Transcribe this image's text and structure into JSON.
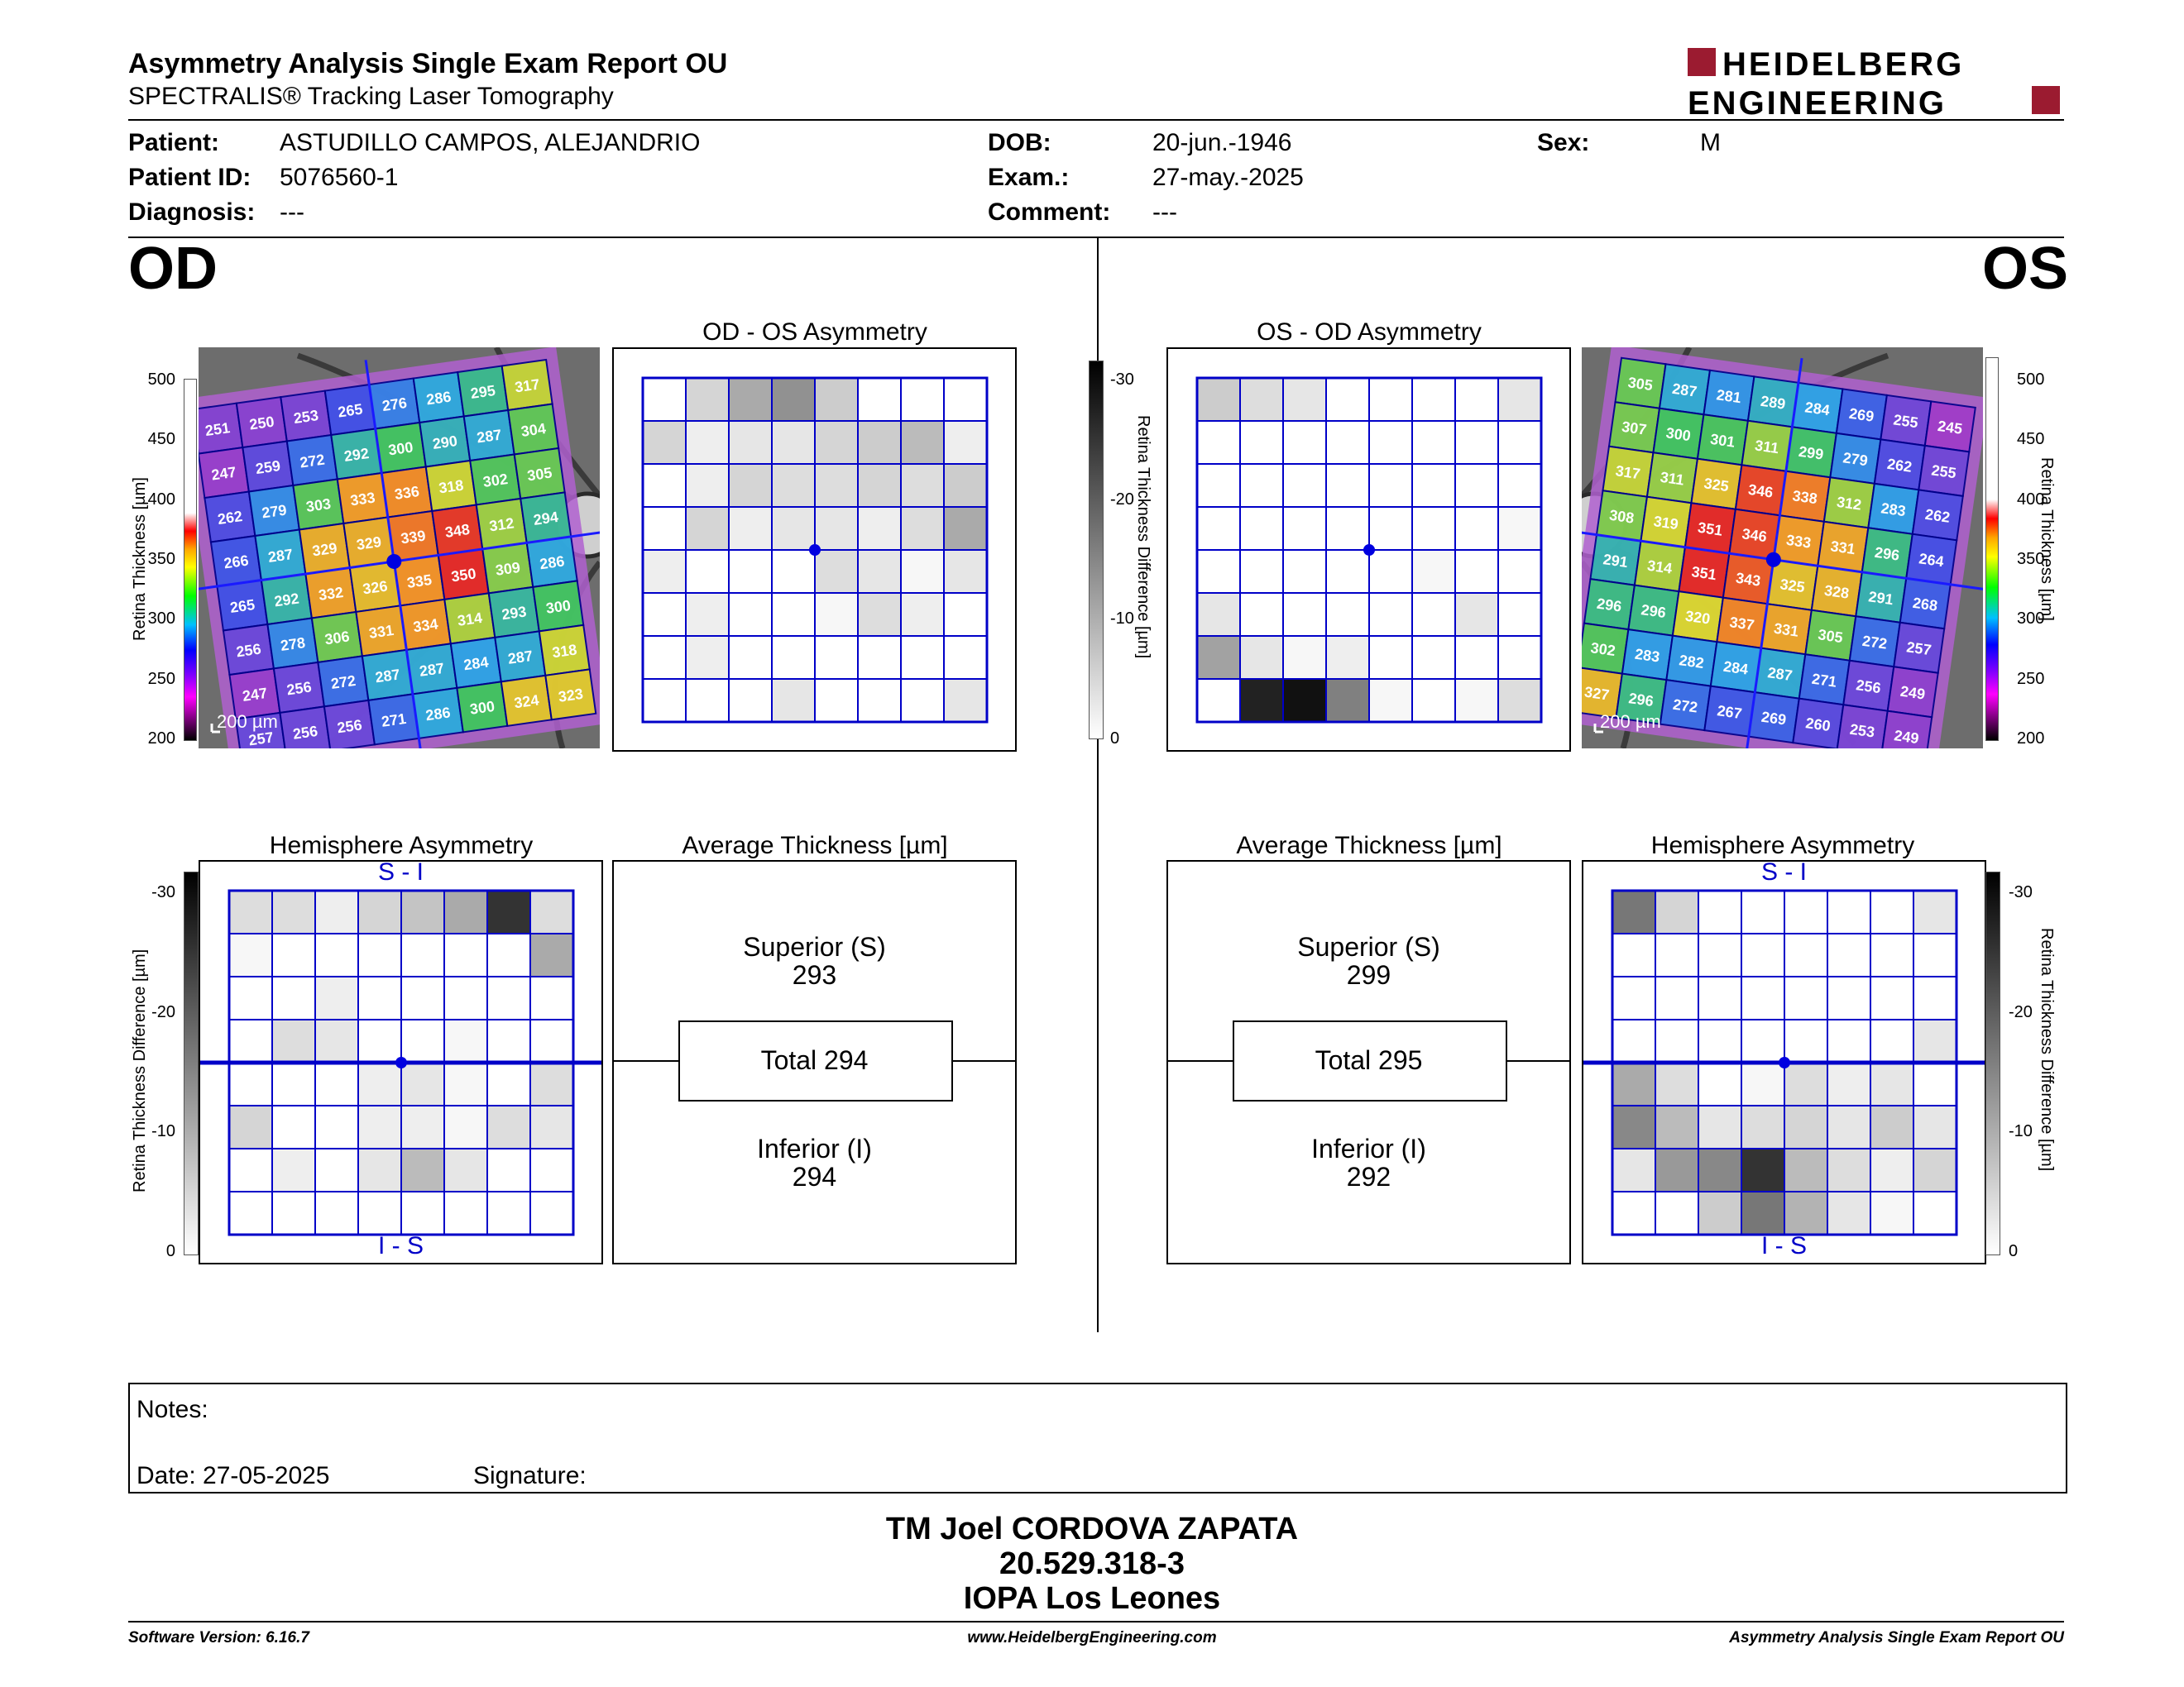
{
  "header": {
    "title": "Asymmetry Analysis Single Exam Report OU",
    "subtitle": "SPECTRALIS® Tracking Laser Tomography",
    "logo_line1": "HEIDELBERG",
    "logo_line2": "ENGINEERING"
  },
  "patient": {
    "patient_label": "Patient:",
    "patient_value": "ASTUDILLO CAMPOS, ALEJANDRIO",
    "id_label": "Patient ID:",
    "id_value": "5076560-1",
    "diag_label": "Diagnosis:",
    "diag_value": "---",
    "dob_label": "DOB:",
    "dob_value": "20-jun.-1946",
    "exam_label": "Exam.:",
    "exam_value": "27-may.-2025",
    "comment_label": "Comment:",
    "comment_value": "---",
    "sex_label": "Sex:",
    "sex_value": "M"
  },
  "od": {
    "eye_label": "OD",
    "asym_title": "OD - OS Asymmetry",
    "hemi_title": "Hemisphere Asymmetry",
    "avg_title": "Average Thickness [µm]",
    "scale_label": "200 µm",
    "hemi_top": "S - I",
    "hemi_bottom": "I - S",
    "superior_label": "Superior (S)",
    "superior_value": "293",
    "total_text": "Total 294",
    "inferior_label": "Inferior (I)",
    "inferior_value": "294",
    "thickness": [
      [
        251,
        250,
        253,
        265,
        276,
        286,
        295,
        317
      ],
      [
        247,
        259,
        272,
        292,
        300,
        290,
        287,
        304
      ],
      [
        262,
        279,
        303,
        333,
        336,
        318,
        302,
        305
      ],
      [
        266,
        287,
        329,
        329,
        339,
        348,
        312,
        294
      ],
      [
        265,
        292,
        332,
        326,
        335,
        350,
        309,
        286
      ],
      [
        256,
        278,
        306,
        331,
        334,
        314,
        293,
        300
      ],
      [
        247,
        256,
        272,
        287,
        287,
        284,
        287,
        318
      ],
      [
        257,
        256,
        256,
        271,
        286,
        300,
        324,
        323
      ]
    ],
    "asym_gray": [
      [
        0,
        5,
        10,
        13,
        6,
        0,
        0,
        0
      ],
      [
        5,
        2,
        3,
        3,
        5,
        6,
        8,
        2
      ],
      [
        0,
        2,
        5,
        4,
        4,
        5,
        4,
        6
      ],
      [
        0,
        5,
        2,
        3,
        3,
        2,
        4,
        10
      ],
      [
        2,
        0,
        0,
        0,
        4,
        3,
        1,
        3
      ],
      [
        0,
        2,
        0,
        0,
        1,
        4,
        2,
        0
      ],
      [
        0,
        2,
        0,
        0,
        0,
        0,
        0,
        0
      ],
      [
        0,
        0,
        0,
        3,
        0,
        0,
        0,
        3
      ]
    ],
    "hemi_gray": [
      [
        4,
        4,
        2,
        5,
        7,
        10,
        24,
        4
      ],
      [
        1,
        0,
        0,
        0,
        0,
        0,
        0,
        10
      ],
      [
        0,
        0,
        2,
        0,
        0,
        0,
        0,
        0
      ],
      [
        0,
        4,
        3,
        0,
        0,
        1,
        0,
        0
      ],
      [
        0,
        0,
        0,
        2,
        3,
        1,
        0,
        4
      ],
      [
        5,
        0,
        0,
        2,
        2,
        1,
        4,
        3
      ],
      [
        0,
        2,
        0,
        3,
        8,
        3,
        0,
        0
      ],
      [
        0,
        0,
        0,
        0,
        0,
        0,
        0,
        0
      ]
    ]
  },
  "os": {
    "eye_label": "OS",
    "asym_title": "OS - OD Asymmetry",
    "hemi_title": "Hemisphere Asymmetry",
    "avg_title": "Average Thickness [µm]",
    "scale_label": "200 µm",
    "hemi_top": "S - I",
    "hemi_bottom": "I - S",
    "superior_label": "Superior (S)",
    "superior_value": "299",
    "total_text": "Total 295",
    "inferior_label": "Inferior (I)",
    "inferior_value": "292",
    "thickness": [
      [
        305,
        287,
        281,
        289,
        284,
        269,
        255,
        245
      ],
      [
        307,
        300,
        301,
        311,
        299,
        279,
        262,
        255
      ],
      [
        317,
        311,
        325,
        346,
        338,
        312,
        283,
        262
      ],
      [
        308,
        319,
        351,
        346,
        333,
        331,
        296,
        264
      ],
      [
        291,
        314,
        351,
        343,
        325,
        328,
        291,
        268
      ],
      [
        296,
        296,
        320,
        337,
        331,
        305,
        272,
        257
      ],
      [
        302,
        283,
        282,
        284,
        287,
        271,
        256,
        249
      ],
      [
        327,
        296,
        272,
        267,
        269,
        260,
        253,
        249
      ]
    ],
    "asym_gray": [
      [
        6,
        4,
        3,
        0,
        0,
        0,
        0,
        3
      ],
      [
        0,
        0,
        0,
        0,
        0,
        0,
        0,
        0
      ],
      [
        0,
        0,
        0,
        0,
        0,
        0,
        0,
        0
      ],
      [
        0,
        0,
        0,
        0,
        0,
        0,
        0,
        1
      ],
      [
        0,
        0,
        0,
        0,
        0,
        1,
        0,
        0
      ],
      [
        3,
        0,
        0,
        0,
        0,
        0,
        3,
        0
      ],
      [
        11,
        3,
        1,
        2,
        0,
        0,
        0,
        0
      ],
      [
        0,
        26,
        28,
        15,
        1,
        0,
        1,
        4
      ]
    ],
    "hemi_gray": [
      [
        16,
        5,
        0,
        0,
        0,
        0,
        0,
        3
      ],
      [
        0,
        0,
        0,
        0,
        0,
        0,
        0,
        0
      ],
      [
        0,
        0,
        0,
        0,
        0,
        0,
        0,
        0
      ],
      [
        0,
        0,
        0,
        0,
        0,
        0,
        0,
        3
      ],
      [
        10,
        4,
        0,
        1,
        4,
        2,
        3,
        0
      ],
      [
        14,
        8,
        3,
        4,
        5,
        3,
        6,
        3
      ],
      [
        3,
        12,
        14,
        24,
        8,
        4,
        2,
        5
      ],
      [
        0,
        0,
        6,
        16,
        9,
        3,
        1,
        0
      ]
    ]
  },
  "scales": {
    "thickness_title": "Retina Thickness [µm]",
    "thickness_ticks": [
      "500",
      "450",
      "400",
      "350",
      "300",
      "250",
      "200"
    ],
    "diff_title": "Retina Thickness Difference [µm]",
    "diff_ticks": [
      "-30",
      "-20",
      "-10",
      "0"
    ]
  },
  "notes": {
    "notes_label": "Notes:",
    "date_text": "Date: 27-05-2025",
    "signature_label": "Signature:"
  },
  "signature": {
    "line1": "TM Joel CORDOVA ZAPATA",
    "line2": "20.529.318-3",
    "line3": "IOPA Los Leones"
  },
  "footer": {
    "software": "Software Version: 6.16.7",
    "website": "www.HeidelbergEngineering.com",
    "report_name": "Asymmetry Analysis Single Exam Report OU"
  }
}
